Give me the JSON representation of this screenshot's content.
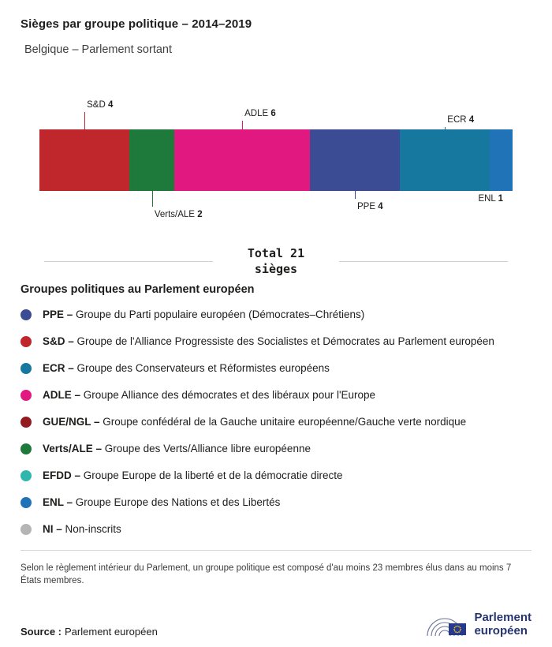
{
  "header": {
    "title": "Sièges par groupe politique – 2014–2019",
    "subtitle": "Belgique – Parlement sortant"
  },
  "chart_data": {
    "type": "bar",
    "variant": "stacked-horizontal",
    "title": "Sièges par groupe politique – 2014–2019",
    "subtitle": "Belgique – Parlement sortant",
    "total": 21,
    "total_label": "Total 21",
    "total_sublabel": "sièges",
    "categories": [
      "S&D",
      "Verts/ALE",
      "ADLE",
      "PPE",
      "ECR",
      "ENL"
    ],
    "values": [
      4,
      2,
      6,
      4,
      4,
      1
    ],
    "segments": [
      {
        "group": "S&D",
        "seats": 4,
        "color": "#c0272d",
        "side": "top",
        "line_len": 22,
        "align": "left"
      },
      {
        "group": "Verts/ALE",
        "seats": 2,
        "color": "#1d7a3a",
        "side": "bottom",
        "line_len": 20,
        "align": "left"
      },
      {
        "group": "ADLE",
        "seats": 6,
        "color": "#e0187f",
        "side": "top",
        "line_len": 11,
        "align": "left"
      },
      {
        "group": "PPE",
        "seats": 4,
        "color": "#3c4c94",
        "side": "bottom",
        "line_len": 10,
        "align": "left"
      },
      {
        "group": "ECR",
        "seats": 4,
        "color": "#16789e",
        "side": "top",
        "line_len": 3,
        "align": "left"
      },
      {
        "group": "ENL",
        "seats": 1,
        "color": "#2173b8",
        "side": "bottom",
        "line_len": 0,
        "align": "right"
      }
    ]
  },
  "legend": {
    "heading": "Groupes politiques au Parlement européen",
    "items": [
      {
        "abbr": "PPE –",
        "desc": "Groupe du Parti populaire européen (Démocrates–Chrétiens)",
        "color": "#3c4c94"
      },
      {
        "abbr": "S&D –",
        "desc": "Groupe de l'Alliance Progressiste des Socialistes et Démocrates au Parlement européen",
        "color": "#c0272d"
      },
      {
        "abbr": "ECR –",
        "desc": "Groupe des Conservateurs et Réformistes européens",
        "color": "#16789e"
      },
      {
        "abbr": "ADLE –",
        "desc": "Groupe Alliance des démocrates et des libéraux pour l'Europe",
        "color": "#e0187f"
      },
      {
        "abbr": "GUE/NGL –",
        "desc": "Groupe confédéral de la Gauche unitaire européenne/Gauche verte nordique",
        "color": "#921c20"
      },
      {
        "abbr": "Verts/ALE –",
        "desc": "Groupe des Verts/Alliance libre européenne",
        "color": "#1d7a3a"
      },
      {
        "abbr": "EFDD –",
        "desc": "Groupe Europe de la liberté et de la démocratie directe",
        "color": "#2fb7ad"
      },
      {
        "abbr": "ENL –",
        "desc": "Groupe Europe des Nations et des Libertés",
        "color": "#2173b8"
      },
      {
        "abbr": "NI –",
        "desc": "Non-inscrits",
        "color": "#b5b5b5"
      }
    ]
  },
  "footnote": "Selon le règlement intérieur du Parlement, un groupe politique est composé d'au moins 23 membres élus dans au moins 7 États membres.",
  "source": {
    "label": "Source :",
    "value": "Parlement européen"
  },
  "logo": {
    "line1": "Parlement",
    "line2": "européen"
  }
}
